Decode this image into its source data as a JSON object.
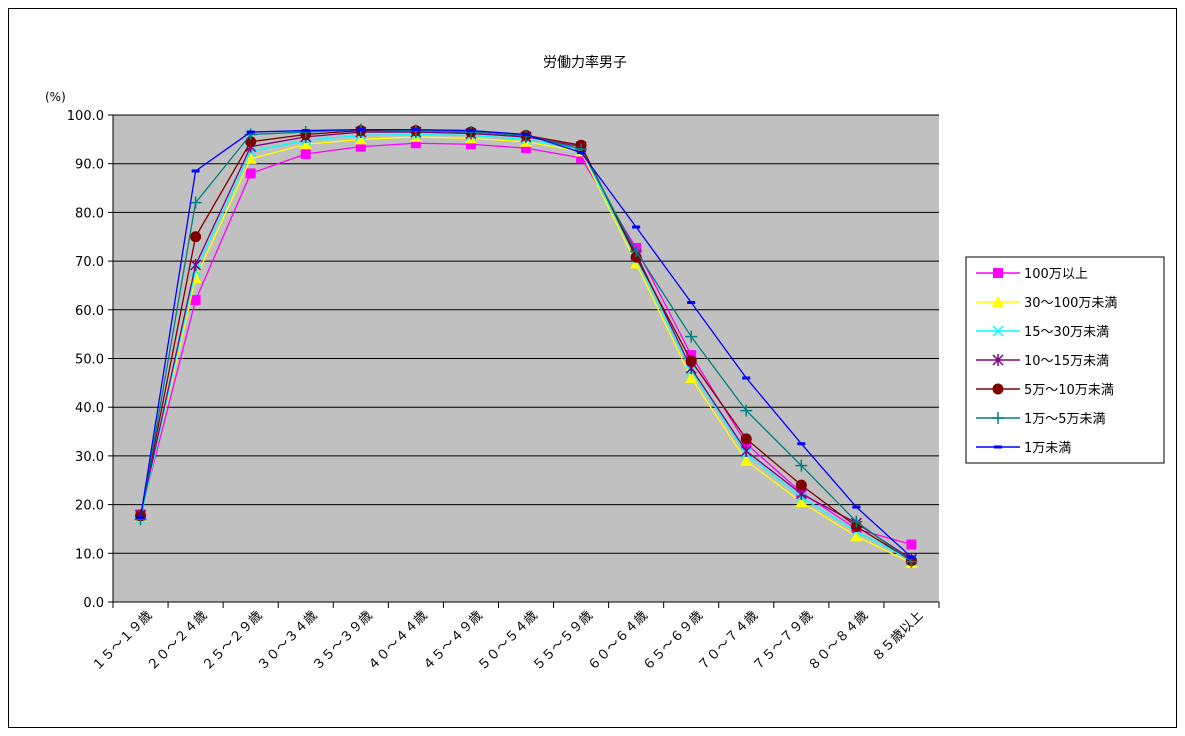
{
  "chart_data": {
    "type": "line",
    "title": "労働力率男子",
    "ylabel": "(%)",
    "ylim": [
      0,
      100
    ],
    "y_ticks": [
      "0.0",
      "10.0",
      "20.0",
      "30.0",
      "40.0",
      "50.0",
      "60.0",
      "70.0",
      "80.0",
      "90.0",
      "100.0"
    ],
    "grid": true,
    "legend_position": "right",
    "categories": [
      "１５～１９歳",
      "２０～２４歳",
      "２５～２９歳",
      "３０～３４歳",
      "３５～３９歳",
      "４０～４４歳",
      "４５～４９歳",
      "５０～５４歳",
      "５５～５９歳",
      "６０～６４歳",
      "６５～６９歳",
      "７０～７４歳",
      "７５～７９歳",
      "８０～８４歳",
      "８５歳以上"
    ],
    "series": [
      {
        "name": "100万以上",
        "color": "#ff00ff",
        "marker": "square",
        "values": [
          18.0,
          62.0,
          88.0,
          92.0,
          93.5,
          94.2,
          94.0,
          93.2,
          91.2,
          72.7,
          50.7,
          32.5,
          22.5,
          15.0,
          11.8
        ]
      },
      {
        "name": "30～100万未満",
        "color": "#ffff00",
        "marker": "triangle",
        "values": [
          17.5,
          66.5,
          91.0,
          94.0,
          95.0,
          95.5,
          95.2,
          94.5,
          92.5,
          69.5,
          46.0,
          29.0,
          20.5,
          13.5,
          8.0
        ]
      },
      {
        "name": "15～30万未満",
        "color": "#00ffff",
        "marker": "x",
        "values": [
          17.2,
          68.0,
          92.5,
          94.8,
          95.8,
          96.0,
          95.8,
          95.0,
          93.0,
          70.5,
          47.5,
          30.5,
          21.5,
          14.5,
          8.5
        ]
      },
      {
        "name": "10～15万未満",
        "color": "#800080",
        "marker": "asterisk",
        "values": [
          17.8,
          69.2,
          93.5,
          95.5,
          96.5,
          96.5,
          96.2,
          95.5,
          93.5,
          71.5,
          48.0,
          31.0,
          22.2,
          16.2,
          8.8
        ]
      },
      {
        "name": "5万～10万未満",
        "color": "#800000",
        "marker": "circle",
        "values": [
          17.7,
          75.0,
          94.5,
          96.0,
          96.8,
          96.8,
          96.5,
          95.8,
          93.8,
          70.8,
          49.5,
          33.5,
          24.0,
          15.5,
          8.5
        ]
      },
      {
        "name": "1万～5万未満",
        "color": "#008080",
        "marker": "plus",
        "values": [
          17.0,
          82.0,
          96.0,
          96.5,
          97.0,
          96.8,
          96.5,
          95.8,
          93.0,
          72.0,
          54.5,
          39.3,
          28.0,
          16.5,
          8.3
        ]
      },
      {
        "name": "1万未満",
        "color": "#0000ff",
        "marker": "dash",
        "values": [
          17.3,
          88.5,
          96.5,
          96.8,
          97.0,
          97.0,
          96.8,
          96.0,
          92.3,
          77.0,
          61.5,
          46.0,
          32.5,
          19.5,
          9.2
        ]
      }
    ]
  }
}
